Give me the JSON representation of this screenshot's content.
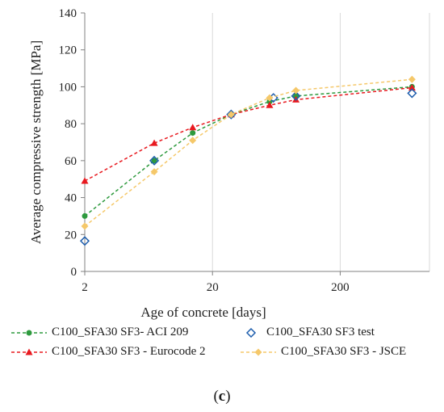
{
  "chart_data": {
    "type": "line",
    "xscale": "log",
    "xlabel": "Age of concrete [days]",
    "ylabel": "Average compressive strength [MPa]",
    "xlim": [
      2,
      1000
    ],
    "ylim": [
      0,
      140
    ],
    "xticks": [
      "2",
      "20",
      "200"
    ],
    "yticks": [
      "0",
      "20",
      "40",
      "60",
      "80",
      "100",
      "120",
      "140"
    ],
    "grid": "vertical",
    "legend_position": "bottom",
    "series": [
      {
        "name": "C100_SFA30 SF3- ACI 209",
        "color": "#2e9a3e",
        "marker": "circle",
        "line": "dashed",
        "x": [
          2,
          7,
          14,
          28,
          56,
          90,
          730
        ],
        "y": [
          30,
          60,
          75,
          85,
          92,
          95,
          100
        ]
      },
      {
        "name": "C100_SFA30 SF3 - Eurocode 2",
        "color": "#e8191f",
        "marker": "triangle",
        "line": "dashed",
        "x": [
          2,
          7,
          14,
          28,
          56,
          90,
          730
        ],
        "y": [
          49,
          69.5,
          78,
          85,
          90,
          93,
          99.5
        ]
      },
      {
        "name": "C100_SFA30 SF3 test",
        "color": "#1f5fae",
        "marker": "diamond-open",
        "line": "none",
        "x": [
          2,
          7,
          28,
          60,
          90,
          730
        ],
        "y": [
          16.5,
          60,
          85,
          94,
          95,
          96.5
        ]
      },
      {
        "name": "C100_SFA30 SF3 - JSCE",
        "color": "#f5c86a",
        "marker": "diamond",
        "line": "dashed",
        "x": [
          2,
          7,
          14,
          28,
          56,
          90,
          730
        ],
        "y": [
          24.5,
          54,
          71,
          85,
          94,
          98,
          104
        ]
      }
    ]
  },
  "caption": "(c)"
}
